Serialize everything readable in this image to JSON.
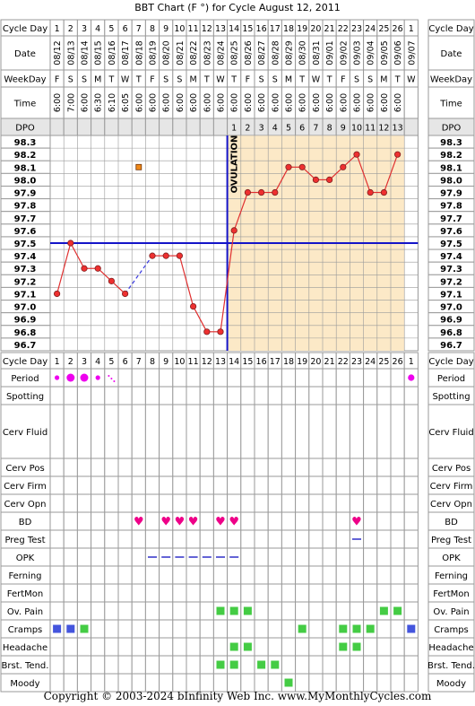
{
  "title": "BBT Chart (F °) for Cycle August 12, 2011",
  "footer": "Copyright © 2003-2024 bInfinity Web Inc.    www.MyMonthlyCycles.com",
  "colors": {
    "grid": "#9a9a9a",
    "label_bg": "#e6e6e6",
    "luteal_bg": "#fce9c7",
    "line": "#e03030",
    "point_fill": "#ee3030",
    "coverline": "#1414c8",
    "ovulation": "#1414c8",
    "period": "#ee00ee",
    "bd": "#ee0088",
    "opk": "#3030c8",
    "green": "#44cc44",
    "blue": "#4455dd",
    "orange": "#f08a1a"
  },
  "labels": {
    "cycle_day": "Cycle Day",
    "date": "Date",
    "weekday": "WeekDay",
    "time": "Time",
    "dpo": "DPO",
    "ovulation": "OVULATION"
  },
  "cycle_days": [
    "1",
    "2",
    "3",
    "4",
    "5",
    "6",
    "7",
    "8",
    "9",
    "10",
    "11",
    "12",
    "13",
    "14",
    "15",
    "16",
    "17",
    "18",
    "19",
    "20",
    "21",
    "22",
    "23",
    "24",
    "25",
    "26",
    "1"
  ],
  "dates": [
    "08/12",
    "08/13",
    "08/14",
    "08/15",
    "08/16",
    "08/17",
    "08/18",
    "08/19",
    "08/20",
    "08/21",
    "08/22",
    "08/23",
    "08/24",
    "08/25",
    "08/26",
    "08/27",
    "08/28",
    "08/29",
    "08/30",
    "08/31",
    "09/01",
    "09/02",
    "09/03",
    "09/04",
    "09/05",
    "09/06",
    "09/07"
  ],
  "weekdays": [
    "F",
    "S",
    "S",
    "M",
    "T",
    "W",
    "T",
    "F",
    "S",
    "S",
    "M",
    "T",
    "W",
    "T",
    "F",
    "S",
    "S",
    "M",
    "T",
    "W",
    "T",
    "F",
    "S",
    "S",
    "M",
    "T",
    "W"
  ],
  "times": [
    "6:00",
    "7:00",
    "6:00",
    "6:30",
    "6:10",
    "6:05",
    "6:00",
    "6:00",
    "6:00",
    "6:00",
    "6:00",
    "6:00",
    "6:00",
    "6:00",
    "6:00",
    "6:00",
    "6:00",
    "6:00",
    "6:00",
    "6:00",
    "6:00",
    "6:00",
    "6:00",
    "6:00",
    "6:00",
    "6:00",
    ""
  ],
  "dpo": [
    "",
    "",
    "",
    "",
    "",
    "",
    "",
    "",
    "",
    "",
    "",
    "",
    "",
    "1",
    "2",
    "3",
    "4",
    "5",
    "6",
    "7",
    "8",
    "9",
    "10",
    "11",
    "12",
    "13",
    ""
  ],
  "chart_data": {
    "type": "line",
    "title": "BBT Chart (F °) for Cycle August 12, 2011",
    "y_ticks": [
      "98.3",
      "98.2",
      "98.1",
      "98.0",
      "97.9",
      "97.8",
      "97.7",
      "97.6",
      "97.5",
      "97.4",
      "97.3",
      "97.2",
      "97.1",
      "97.0",
      "96.9",
      "96.8",
      "96.7"
    ],
    "ylim": [
      96.7,
      98.3
    ],
    "x": [
      "1",
      "2",
      "3",
      "4",
      "5",
      "6",
      "7",
      "8",
      "9",
      "10",
      "11",
      "12",
      "13",
      "14",
      "15",
      "16",
      "17",
      "18",
      "19",
      "20",
      "21",
      "22",
      "23",
      "24",
      "25",
      "26",
      "1"
    ],
    "series": [
      {
        "values": [
          97.1,
          97.5,
          97.3,
          97.3,
          97.2,
          97.1,
          null,
          97.4,
          97.4,
          97.4,
          97.0,
          96.8,
          96.8,
          97.6,
          97.9,
          97.9,
          97.9,
          98.1,
          98.1,
          98.0,
          98.0,
          98.1,
          98.2,
          97.9,
          97.9,
          98.2,
          null
        ],
        "dashed_gaps": [
          [
            6,
            8
          ]
        ]
      }
    ],
    "discarded_points": [
      {
        "day_index": 7,
        "value": 98.1
      }
    ],
    "coverline": 97.5,
    "ovulation_after_day_index": 13,
    "grid": true
  },
  "rows": [
    {
      "label": "Cycle Day",
      "type": "cycleday"
    },
    {
      "label": "Period",
      "type": "period",
      "marks": [
        {
          "i": 1,
          "s": "s"
        },
        {
          "i": 2,
          "s": "l"
        },
        {
          "i": 3,
          "s": "l"
        },
        {
          "i": 4,
          "s": "s"
        },
        {
          "i": 5,
          "s": "spot"
        },
        {
          "i": 27,
          "s": "m"
        }
      ]
    },
    {
      "label": "Spotting",
      "type": "plain"
    },
    {
      "label": "Cerv Fluid",
      "type": "tall"
    },
    {
      "label": "Cerv Pos",
      "type": "plain"
    },
    {
      "label": "Cerv Firm",
      "type": "plain"
    },
    {
      "label": "Cerv Opn",
      "type": "plain"
    },
    {
      "label": "BD",
      "type": "heart",
      "days": [
        7,
        9,
        10,
        11,
        13,
        14,
        23
      ]
    },
    {
      "label": "Preg Test",
      "type": "dash",
      "days": [
        23
      ]
    },
    {
      "label": "OPK",
      "type": "dash",
      "days": [
        8,
        9,
        10,
        11,
        12,
        13,
        14
      ]
    },
    {
      "label": "Ferning",
      "type": "plain"
    },
    {
      "label": "FertMon",
      "type": "plain"
    },
    {
      "label": "Ov. Pain",
      "type": "square",
      "color": "green",
      "days": [
        13,
        14,
        15,
        25,
        26
      ]
    },
    {
      "label": "Cramps",
      "type": "square",
      "color": "mixed",
      "days": [
        1,
        2,
        3,
        19,
        22,
        23,
        24,
        27
      ],
      "blue_days": [
        1,
        2,
        27
      ]
    },
    {
      "label": "Headache",
      "type": "square",
      "color": "green",
      "days": [
        14,
        15,
        22,
        23
      ]
    },
    {
      "label": "Brst. Tend.",
      "type": "square",
      "color": "green",
      "days": [
        13,
        14,
        16,
        17
      ]
    },
    {
      "label": "Moody",
      "type": "square",
      "color": "green",
      "days": [
        18
      ]
    }
  ]
}
